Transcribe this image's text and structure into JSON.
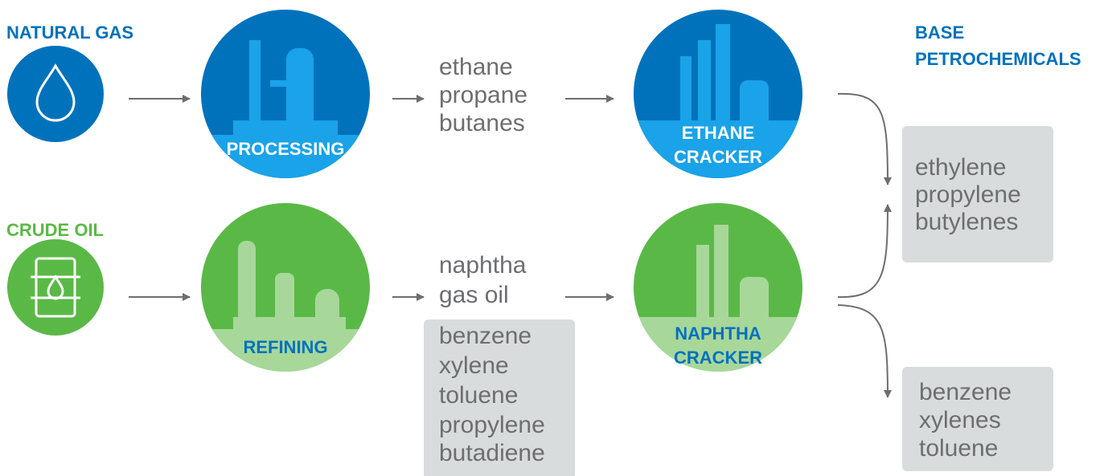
{
  "sources": [
    {
      "label": "NATURAL GAS"
    },
    {
      "label": "CRUDE OIL"
    }
  ],
  "processes": [
    {
      "label": "PROCESSING"
    },
    {
      "label": "REFINING"
    }
  ],
  "intermediates": [
    {
      "items": [
        "ethane",
        "propane",
        "butanes"
      ]
    },
    {
      "items": [
        "naphtha",
        "gas oil"
      ]
    }
  ],
  "refinery_products": {
    "items": [
      "benzene",
      "xylene",
      "toluene",
      "propylene",
      "butadiene"
    ]
  },
  "crackers": [
    {
      "label": [
        "ETHANE",
        "CRACKER"
      ]
    },
    {
      "label": [
        "NAPHTHA",
        "CRACKER"
      ]
    }
  ],
  "output_title": [
    "BASE",
    "PETROCHEMICALS"
  ],
  "outputs": [
    {
      "items": [
        "ethylene",
        "propylene",
        "butylenes"
      ]
    },
    {
      "items": [
        "benzene",
        "xylenes",
        "toluene"
      ]
    }
  ]
}
